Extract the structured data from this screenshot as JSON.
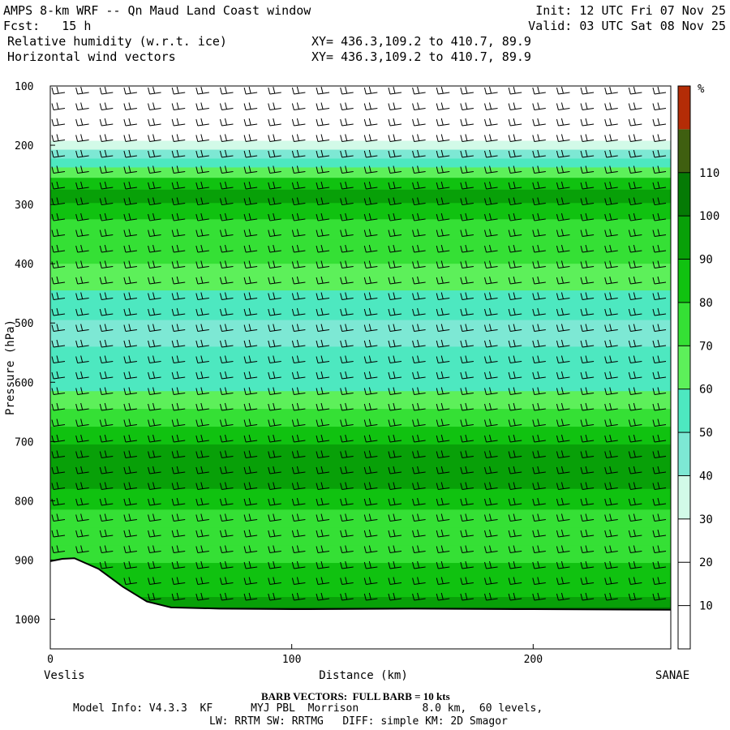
{
  "header": {
    "title": "AMPS 8-km WRF -- Qn Maud Land Coast window",
    "forecast": "Fcst:   15 h",
    "field1": "Relative humidity (w.r.t. ice)",
    "field2": "Horizontal wind vectors",
    "init": "Init: 12 UTC Fri 07 Nov 25",
    "valid": "Valid: 03 UTC Sat 08 Nov 25",
    "xy1": "XY= 436.3,109.2 to 410.7, 89.9",
    "xy2": "XY= 436.3,109.2 to 410.7, 89.9"
  },
  "footer": {
    "barb_note": "BARB VECTORS:  FULL BARB = 10 kts",
    "model_info": "Model Info: V4.3.3  KF      MYJ PBL  Morrison          8.0 km,  60 levels,",
    "physics": "LW: RRTM SW: RRTMG   DIFF: simple KM: 2D Smagor"
  },
  "chart_data": {
    "type": "heatmap",
    "xlabel": "Distance (km)",
    "ylabel": "Pressure (hPa)",
    "xlim": [
      0,
      257
    ],
    "ylim": [
      1050,
      100
    ],
    "x_ticks": [
      0,
      100,
      200
    ],
    "y_ticks": [
      100,
      200,
      300,
      400,
      500,
      600,
      700,
      800,
      900,
      1000
    ],
    "x_start_label": "Veslis",
    "x_end_label": "SANAE",
    "colorbar": {
      "unit": "%",
      "levels": [
        10,
        20,
        30,
        40,
        50,
        60,
        70,
        80,
        90,
        100,
        110
      ],
      "colors": [
        "#ffffff",
        "#ffffff",
        "#ffffff",
        "#d2fae8",
        "#7de8d4",
        "#4de8c0",
        "#5df05a",
        "#35e035",
        "#10c210",
        "#08a008",
        "#057a05",
        "#3f5f10",
        "#b42c06"
      ]
    },
    "rh_profile": [
      {
        "p": 100,
        "rh": 5
      },
      {
        "p": 150,
        "rh": 8
      },
      {
        "p": 185,
        "rh": 20
      },
      {
        "p": 200,
        "rh": 32
      },
      {
        "p": 215,
        "rh": 42
      },
      {
        "p": 230,
        "rh": 55
      },
      {
        "p": 245,
        "rh": 66
      },
      {
        "p": 265,
        "rh": 82
      },
      {
        "p": 285,
        "rh": 95
      },
      {
        "p": 310,
        "rh": 88
      },
      {
        "p": 340,
        "rh": 76
      },
      {
        "p": 380,
        "rh": 70
      },
      {
        "p": 420,
        "rh": 62
      },
      {
        "p": 470,
        "rh": 55
      },
      {
        "p": 520,
        "rh": 46
      },
      {
        "p": 560,
        "rh": 50
      },
      {
        "p": 600,
        "rh": 55
      },
      {
        "p": 630,
        "rh": 62
      },
      {
        "p": 660,
        "rh": 72
      },
      {
        "p": 690,
        "rh": 84
      },
      {
        "p": 720,
        "rh": 94
      },
      {
        "p": 760,
        "rh": 96
      },
      {
        "p": 800,
        "rh": 84
      },
      {
        "p": 830,
        "rh": 78
      },
      {
        "p": 860,
        "rh": 75
      },
      {
        "p": 890,
        "rh": 78
      },
      {
        "p": 920,
        "rh": 82
      },
      {
        "p": 950,
        "rh": 88
      },
      {
        "p": 975,
        "rh": 96
      },
      {
        "p": 985,
        "rh": 102
      }
    ],
    "terrain": [
      {
        "x": 0,
        "p": 902
      },
      {
        "x": 5,
        "p": 898
      },
      {
        "x": 10,
        "p": 897
      },
      {
        "x": 20,
        "p": 915
      },
      {
        "x": 30,
        "p": 945
      },
      {
        "x": 40,
        "p": 970
      },
      {
        "x": 50,
        "p": 980
      },
      {
        "x": 70,
        "p": 982
      },
      {
        "x": 100,
        "p": 983
      },
      {
        "x": 150,
        "p": 982
      },
      {
        "x": 200,
        "p": 983
      },
      {
        "x": 257,
        "p": 984
      }
    ]
  }
}
